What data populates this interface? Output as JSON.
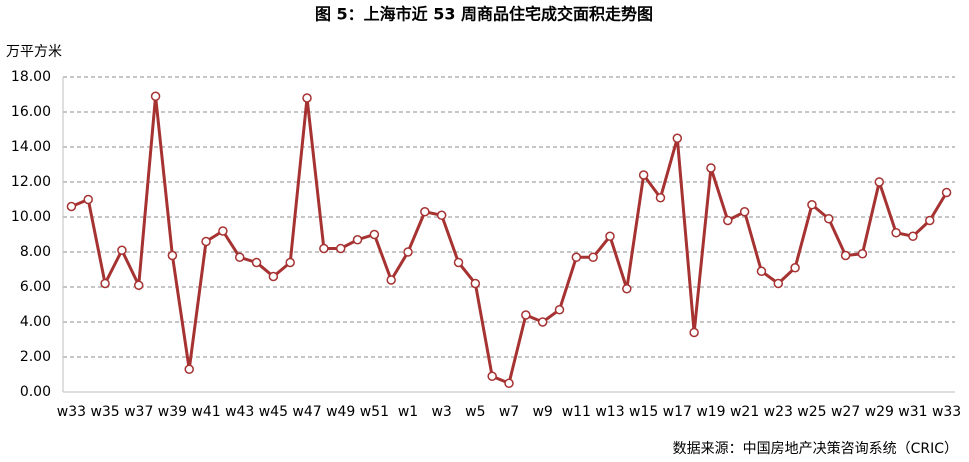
{
  "chart_data": {
    "type": "line",
    "title": "图 5：上海市近 53 周商品住宅成交面积走势图",
    "y_label": "万平方米",
    "source": "数据来源：中国房地产决策咨询系统（CRIC）",
    "categories": [
      "w33",
      null,
      "w35",
      null,
      "w37",
      null,
      "w39",
      null,
      "w41",
      null,
      "w43",
      null,
      "w45",
      null,
      "w47",
      null,
      "w49",
      null,
      "w51",
      null,
      "w1",
      null,
      "w3",
      null,
      "w5",
      null,
      "w7",
      null,
      "w9",
      null,
      "w11",
      null,
      "w13",
      null,
      "w15",
      null,
      "w17",
      null,
      "w19",
      null,
      "w21",
      null,
      "w23",
      null,
      "w25",
      null,
      "w27",
      null,
      "w29",
      null,
      "w31",
      null,
      "w33"
    ],
    "values": [
      10.6,
      11.0,
      6.2,
      8.1,
      6.1,
      16.9,
      7.8,
      1.3,
      8.6,
      9.2,
      7.7,
      7.4,
      6.6,
      7.4,
      16.8,
      8.2,
      8.2,
      8.7,
      9.0,
      6.4,
      8.0,
      10.3,
      10.1,
      7.4,
      6.2,
      0.9,
      0.5,
      4.4,
      4.0,
      4.7,
      7.7,
      7.7,
      8.9,
      5.9,
      12.4,
      11.1,
      14.5,
      3.4,
      12.8,
      9.8,
      10.3,
      6.9,
      6.2,
      7.1,
      10.7,
      9.9,
      7.8,
      7.9,
      12.0,
      9.1,
      8.9,
      9.8,
      11.4
    ],
    "color": "#a63232",
    "ylim": [
      0,
      18
    ],
    "yticks": [
      {
        "value": 0,
        "label": "0.00"
      },
      {
        "value": 2,
        "label": "2.00"
      },
      {
        "value": 4,
        "label": "4.00"
      },
      {
        "value": 6,
        "label": "6.00"
      },
      {
        "value": 8,
        "label": "8.00"
      },
      {
        "value": 10,
        "label": "10.00"
      },
      {
        "value": 12,
        "label": "12.00"
      },
      {
        "value": 14,
        "label": "14.00"
      },
      {
        "value": 16,
        "label": "16.00"
      },
      {
        "value": 18,
        "label": "18.00"
      }
    ],
    "grid": true
  }
}
